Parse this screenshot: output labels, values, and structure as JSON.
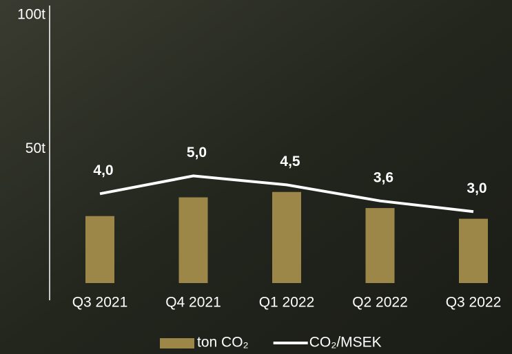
{
  "chart_data": {
    "type": "bar-line",
    "categories": [
      "Q3 2021",
      "Q4 2021",
      "Q1 2022",
      "Q2 2022",
      "Q3 2022"
    ],
    "series": [
      {
        "name": "ton CO₂",
        "type": "bar",
        "color": "#9c8748",
        "values": [
          25,
          32,
          34,
          28,
          24
        ]
      },
      {
        "name": "CO₂/MSEK",
        "type": "line",
        "axis": "y2",
        "color": "#ffffff",
        "values": [
          4.0,
          5.0,
          4.5,
          3.6,
          3.0
        ],
        "value_labels": [
          "4,0",
          "5,0",
          "4,5",
          "3,6",
          "3,0"
        ]
      }
    ],
    "ylim": [
      0,
      100
    ],
    "yticks": [
      {
        "value": 50,
        "label": "50t"
      },
      {
        "value": 100,
        "label": "100t"
      }
    ],
    "y2lim": [
      -1,
      14
    ]
  }
}
